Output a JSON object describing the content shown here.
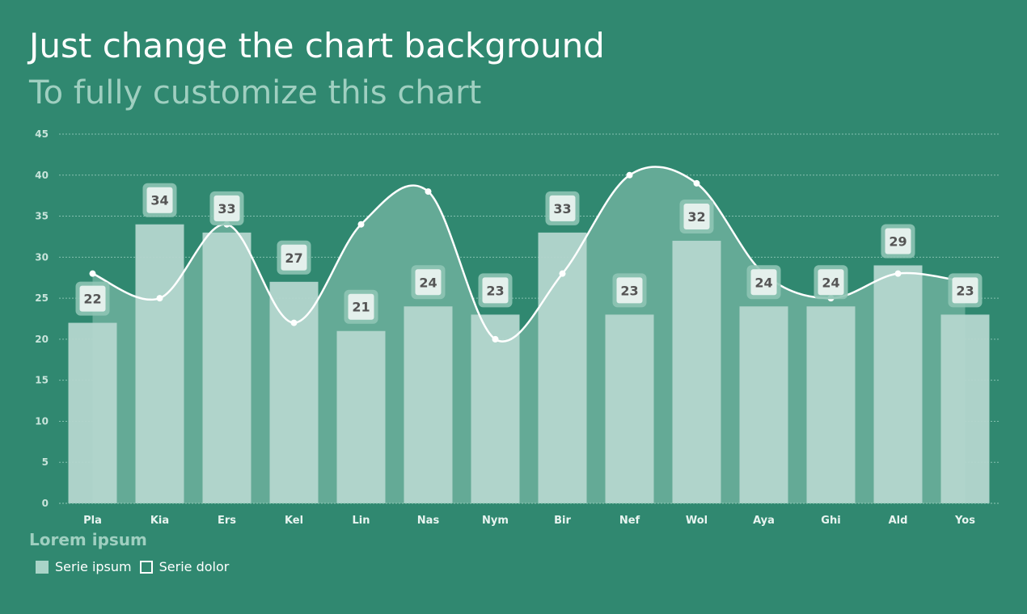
{
  "title": "Just change the chart background",
  "subtitle": "To fully customize this chart",
  "legend": {
    "title": "Lorem ipsum",
    "items": [
      {
        "label": "Serie ipsum"
      },
      {
        "label": "Serie dolor"
      }
    ]
  },
  "colors": {
    "background": "#308870",
    "bar": "#b4d6cd",
    "area": "#64aa96",
    "line": "#ffffff",
    "grid": "#8fc7b6",
    "label_text": "#555555"
  },
  "chart_data": {
    "type": "bar",
    "categories": [
      "Pla",
      "Kia",
      "Ers",
      "Kel",
      "Lin",
      "Nas",
      "Nym",
      "Bir",
      "Nef",
      "Wol",
      "Aya",
      "Ghi",
      "Ald",
      "Yos"
    ],
    "ylim": [
      0,
      45
    ],
    "yticks": [
      0,
      5,
      10,
      15,
      20,
      25,
      30,
      35,
      40,
      45
    ],
    "grid": true,
    "legend_position": "bottom-left",
    "series": [
      {
        "name": "Serie ipsum",
        "type": "bar",
        "values": [
          22,
          34,
          33,
          27,
          21,
          24,
          23,
          33,
          23,
          32,
          24,
          24,
          29,
          23
        ]
      },
      {
        "name": "Serie dolor",
        "type": "area-line",
        "values": [
          28,
          25,
          34,
          22,
          34,
          38,
          20,
          28,
          40,
          39,
          28,
          25,
          28,
          27
        ]
      }
    ]
  }
}
